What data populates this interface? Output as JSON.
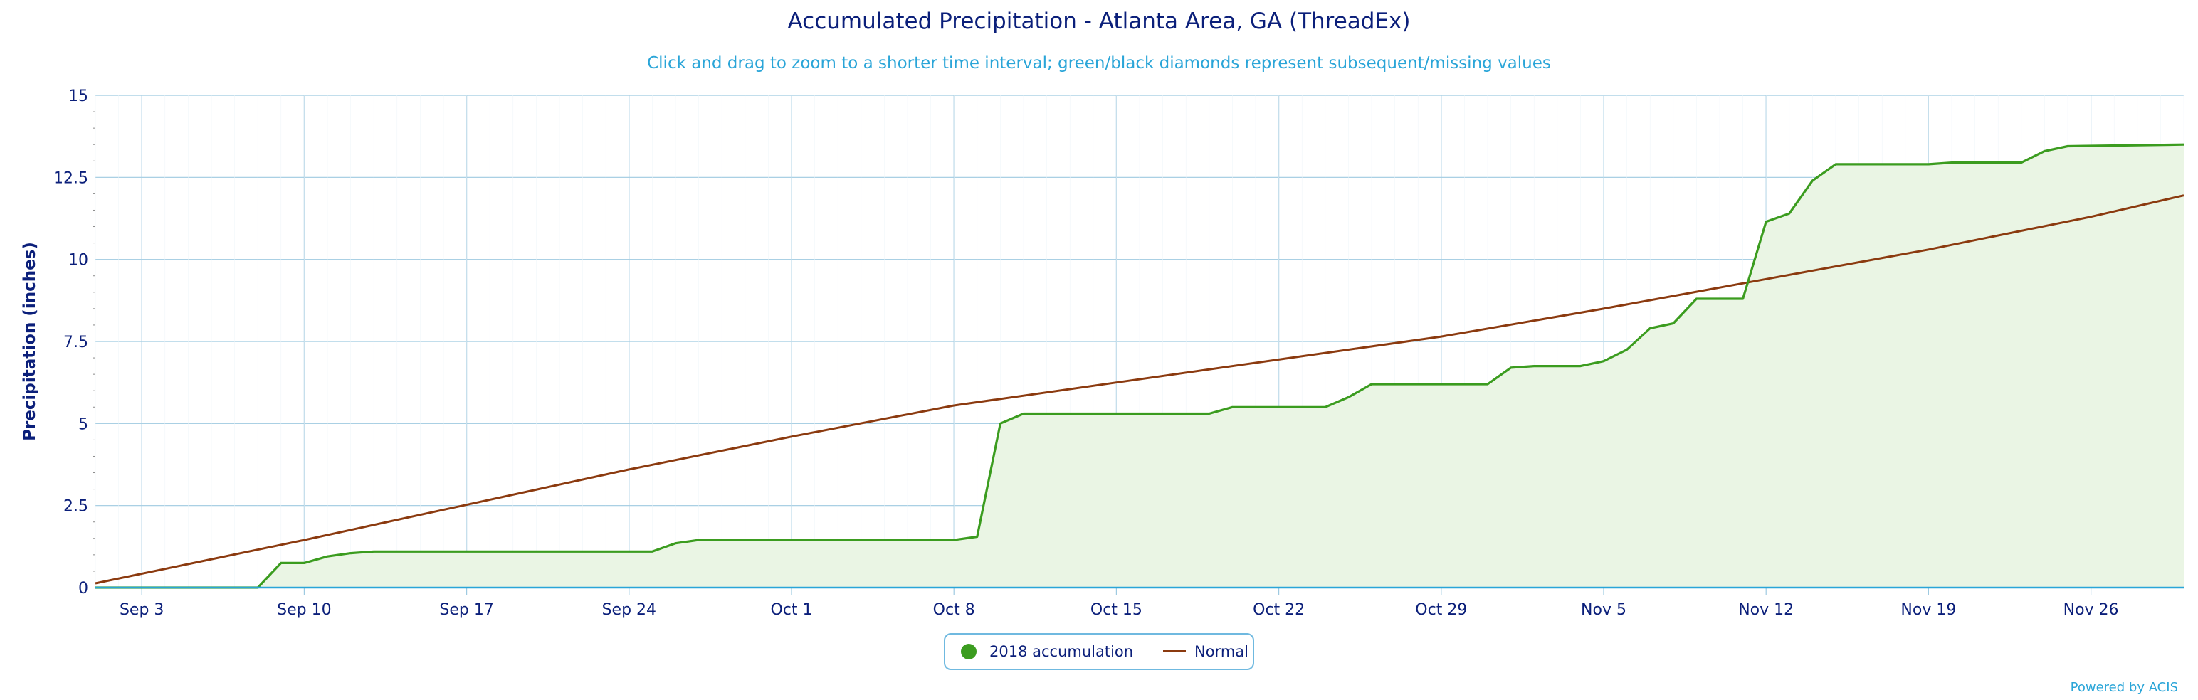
{
  "title": "Accumulated Precipitation - Atlanta Area, GA (ThreadEx)",
  "subtitle": "Click and drag to zoom to a shorter time interval; green/black diamonds represent subsequent/missing values",
  "credit": "Powered by ACIS",
  "colors": {
    "accumulation": "#3b9c1f",
    "accumulation_fill": "#eaf5e4",
    "normal": "#8b3a0f",
    "axis_text": "#0b1f7a",
    "grid": "#9ecae1"
  },
  "legend": {
    "items": [
      {
        "label": "2018 accumulation",
        "symbol": "dot"
      },
      {
        "label": "Normal",
        "symbol": "line"
      }
    ]
  },
  "chart_data": {
    "type": "area",
    "title": "Accumulated Precipitation - Atlanta Area, GA (ThreadEx)",
    "ylabel": "Precipitation (inches)",
    "xlabel": "",
    "ylim": [
      0,
      15
    ],
    "yticks": [
      "0",
      "2.5",
      "5",
      "7.5",
      "10",
      "12.5",
      "15"
    ],
    "xlim": [
      "2018-09-01",
      "2018-11-30"
    ],
    "xticks": [
      {
        "date": "2018-09-03",
        "label": "Sep 3"
      },
      {
        "date": "2018-09-10",
        "label": "Sep 10"
      },
      {
        "date": "2018-09-17",
        "label": "Sep 17"
      },
      {
        "date": "2018-09-24",
        "label": "Sep 24"
      },
      {
        "date": "2018-10-01",
        "label": "Oct 1"
      },
      {
        "date": "2018-10-08",
        "label": "Oct 8"
      },
      {
        "date": "2018-10-15",
        "label": "Oct 15"
      },
      {
        "date": "2018-10-22",
        "label": "Oct 22"
      },
      {
        "date": "2018-10-29",
        "label": "Oct 29"
      },
      {
        "date": "2018-11-05",
        "label": "Nov 5"
      },
      {
        "date": "2018-11-12",
        "label": "Nov 12"
      },
      {
        "date": "2018-11-19",
        "label": "Nov 19"
      },
      {
        "date": "2018-11-26",
        "label": "Nov 26"
      }
    ],
    "grid": true,
    "legend_position": "bottom-center",
    "series": [
      {
        "name": "2018 accumulation",
        "kind": "area",
        "points": [
          [
            "2018-09-01",
            0
          ],
          [
            "2018-09-08",
            0
          ],
          [
            "2018-09-09",
            0.75
          ],
          [
            "2018-09-10",
            0.75
          ],
          [
            "2018-09-11",
            0.95
          ],
          [
            "2018-09-12",
            1.05
          ],
          [
            "2018-09-13",
            1.1
          ],
          [
            "2018-09-25",
            1.1
          ],
          [
            "2018-09-26",
            1.35
          ],
          [
            "2018-09-27",
            1.45
          ],
          [
            "2018-10-08",
            1.45
          ],
          [
            "2018-10-09",
            1.55
          ],
          [
            "2018-10-10",
            5.0
          ],
          [
            "2018-10-11",
            5.3
          ],
          [
            "2018-10-19",
            5.3
          ],
          [
            "2018-10-20",
            5.5
          ],
          [
            "2018-10-24",
            5.5
          ],
          [
            "2018-10-25",
            5.8
          ],
          [
            "2018-10-26",
            6.2
          ],
          [
            "2018-10-31",
            6.2
          ],
          [
            "2018-11-01",
            6.7
          ],
          [
            "2018-11-02",
            6.75
          ],
          [
            "2018-11-04",
            6.75
          ],
          [
            "2018-11-05",
            6.9
          ],
          [
            "2018-11-06",
            7.25
          ],
          [
            "2018-11-07",
            7.9
          ],
          [
            "2018-11-08",
            8.05
          ],
          [
            "2018-11-09",
            8.8
          ],
          [
            "2018-11-11",
            8.8
          ],
          [
            "2018-11-12",
            11.15
          ],
          [
            "2018-11-13",
            11.4
          ],
          [
            "2018-11-14",
            12.4
          ],
          [
            "2018-11-15",
            12.9
          ],
          [
            "2018-11-19",
            12.9
          ],
          [
            "2018-11-20",
            12.95
          ],
          [
            "2018-11-23",
            12.95
          ],
          [
            "2018-11-24",
            13.3
          ],
          [
            "2018-11-25",
            13.45
          ],
          [
            "2018-11-30",
            13.5
          ]
        ]
      },
      {
        "name": "Normal",
        "kind": "line",
        "points": [
          [
            "2018-09-01",
            0.13
          ],
          [
            "2018-09-10",
            1.45
          ],
          [
            "2018-09-24",
            3.6
          ],
          [
            "2018-10-01",
            4.6
          ],
          [
            "2018-10-08",
            5.55
          ],
          [
            "2018-10-15",
            6.25
          ],
          [
            "2018-10-22",
            6.95
          ],
          [
            "2018-10-29",
            7.65
          ],
          [
            "2018-11-05",
            8.5
          ],
          [
            "2018-11-12",
            9.4
          ],
          [
            "2018-11-19",
            10.3
          ],
          [
            "2018-11-26",
            11.3
          ],
          [
            "2018-11-30",
            11.95
          ]
        ]
      }
    ]
  }
}
